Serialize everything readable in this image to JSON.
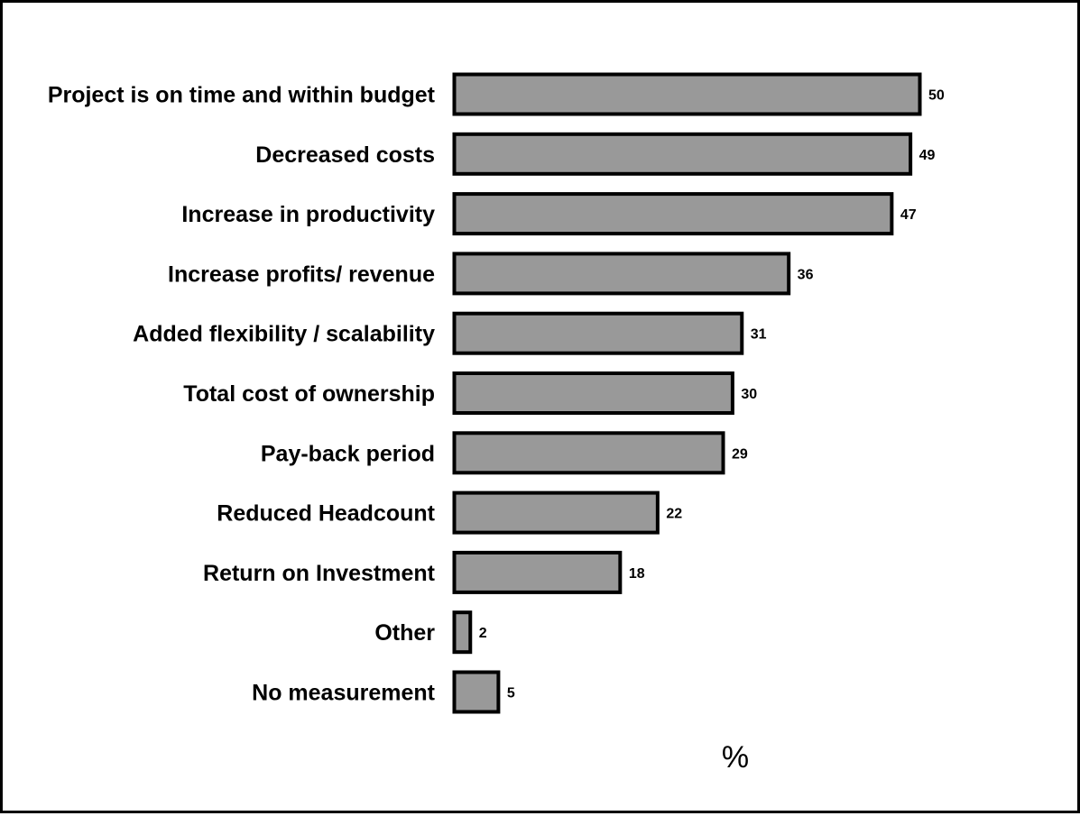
{
  "chart_data": {
    "type": "bar",
    "orientation": "horizontal",
    "categories": [
      "Project is on time and within budget",
      "Decreased costs",
      "Increase in productivity",
      "Increase profits/ revenue",
      "Added flexibility / scalability",
      "Total cost of ownership",
      "Pay-back period",
      "Reduced Headcount",
      "Return on Investment",
      "Other",
      "No measurement"
    ],
    "values": [
      50,
      49,
      47,
      36,
      31,
      30,
      29,
      22,
      18,
      2,
      5
    ],
    "value_labels": [
      "50",
      "49",
      "47",
      "36",
      "31",
      "30",
      "29",
      "22",
      "18",
      "2",
      "5"
    ],
    "xlabel": "%",
    "ylabel": "",
    "xlim": [
      0,
      50
    ],
    "grid": false,
    "legend": "none",
    "colors": {
      "bar_fill": "#999999",
      "bar_stroke": "#000000"
    }
  }
}
